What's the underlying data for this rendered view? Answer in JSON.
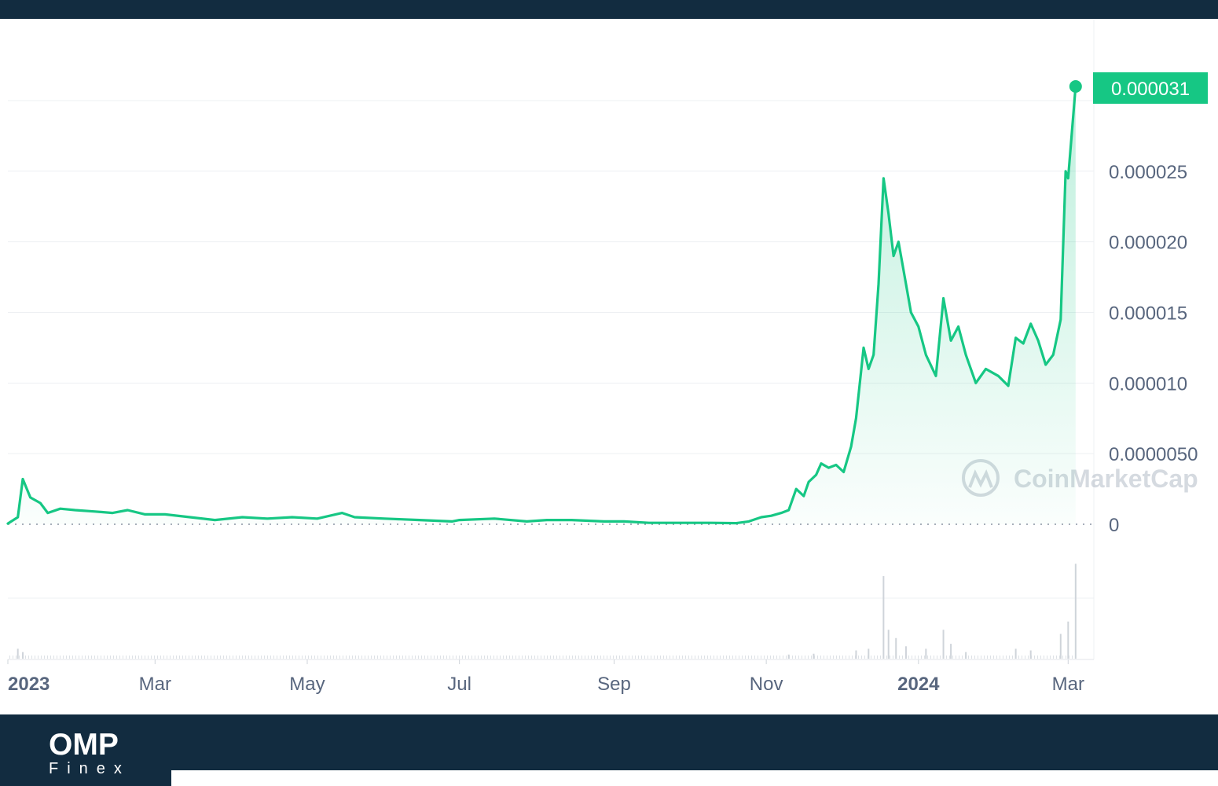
{
  "chart_data": {
    "type": "area",
    "title": "",
    "xlabel": "",
    "ylabel": "",
    "x_tick_labels": [
      "2023",
      "Mar",
      "May",
      "Jul",
      "Sep",
      "Nov",
      "2024",
      "Mar"
    ],
    "y_tick_labels": [
      "0",
      "0.0000050",
      "0.000010",
      "0.000015",
      "0.000020",
      "0.000025"
    ],
    "ylim": [
      0,
      3.1e-05
    ],
    "xlim": [
      "2023-01-01",
      "2024-03-05"
    ],
    "grid": true,
    "current_price_label": "0.000031",
    "watermark": "CoinMarketCap",
    "line_color": "#16c784",
    "fill_color": "#16c784",
    "series": [
      {
        "values": [
          [
            "2023-01-01",
            5e-08
          ],
          [
            "2023-01-05",
            5e-07
          ],
          [
            "2023-01-07",
            3.2e-06
          ],
          [
            "2023-01-10",
            1.9e-06
          ],
          [
            "2023-01-14",
            1.5e-06
          ],
          [
            "2023-01-17",
            8e-07
          ],
          [
            "2023-01-22",
            1.1e-06
          ],
          [
            "2023-01-28",
            1e-06
          ],
          [
            "2023-02-05",
            9e-07
          ],
          [
            "2023-02-12",
            8e-07
          ],
          [
            "2023-02-18",
            1e-06
          ],
          [
            "2023-02-25",
            7e-07
          ],
          [
            "2023-03-05",
            7e-07
          ],
          [
            "2023-03-15",
            5e-07
          ],
          [
            "2023-03-25",
            3e-07
          ],
          [
            "2023-04-05",
            5e-07
          ],
          [
            "2023-04-15",
            4e-07
          ],
          [
            "2023-04-25",
            5e-07
          ],
          [
            "2023-05-05",
            4e-07
          ],
          [
            "2023-05-15",
            8e-07
          ],
          [
            "2023-05-20",
            5e-07
          ],
          [
            "2023-06-01",
            4e-07
          ],
          [
            "2023-06-15",
            3e-07
          ],
          [
            "2023-06-28",
            2e-07
          ],
          [
            "2023-07-01",
            3e-07
          ],
          [
            "2023-07-15",
            4e-07
          ],
          [
            "2023-07-28",
            2e-07
          ],
          [
            "2023-08-05",
            3e-07
          ],
          [
            "2023-08-15",
            3e-07
          ],
          [
            "2023-08-28",
            2e-07
          ],
          [
            "2023-09-05",
            2e-07
          ],
          [
            "2023-09-15",
            1e-07
          ],
          [
            "2023-09-28",
            1e-07
          ],
          [
            "2023-10-10",
            1e-07
          ],
          [
            "2023-10-20",
            8e-08
          ],
          [
            "2023-10-25",
            2e-07
          ],
          [
            "2023-10-30",
            5e-07
          ],
          [
            "2023-11-03",
            6e-07
          ],
          [
            "2023-11-07",
            8e-07
          ],
          [
            "2023-11-10",
            1e-06
          ],
          [
            "2023-11-13",
            2.5e-06
          ],
          [
            "2023-11-16",
            2e-06
          ],
          [
            "2023-11-18",
            3e-06
          ],
          [
            "2023-11-21",
            3.5e-06
          ],
          [
            "2023-11-23",
            4.3e-06
          ],
          [
            "2023-11-26",
            4e-06
          ],
          [
            "2023-11-29",
            4.2e-06
          ],
          [
            "2023-12-02",
            3.7e-06
          ],
          [
            "2023-12-05",
            5.5e-06
          ],
          [
            "2023-12-07",
            7.5e-06
          ],
          [
            "2023-12-10",
            1.25e-05
          ],
          [
            "2023-12-12",
            1.1e-05
          ],
          [
            "2023-12-14",
            1.2e-05
          ],
          [
            "2023-12-16",
            1.7e-05
          ],
          [
            "2023-12-18",
            2.45e-05
          ],
          [
            "2023-12-20",
            2.2e-05
          ],
          [
            "2023-12-22",
            1.9e-05
          ],
          [
            "2023-12-24",
            2e-05
          ],
          [
            "2023-12-26",
            1.8e-05
          ],
          [
            "2023-12-29",
            1.5e-05
          ],
          [
            "2024-01-01",
            1.4e-05
          ],
          [
            "2024-01-04",
            1.2e-05
          ],
          [
            "2024-01-08",
            1.05e-05
          ],
          [
            "2024-01-11",
            1.6e-05
          ],
          [
            "2024-01-14",
            1.3e-05
          ],
          [
            "2024-01-17",
            1.4e-05
          ],
          [
            "2024-01-20",
            1.2e-05
          ],
          [
            "2024-01-24",
            1e-05
          ],
          [
            "2024-01-28",
            1.1e-05
          ],
          [
            "2024-02-02",
            1.05e-05
          ],
          [
            "2024-02-06",
            9.8e-06
          ],
          [
            "2024-02-09",
            1.32e-05
          ],
          [
            "2024-02-12",
            1.28e-05
          ],
          [
            "2024-02-15",
            1.42e-05
          ],
          [
            "2024-02-18",
            1.3e-05
          ],
          [
            "2024-02-21",
            1.13e-05
          ],
          [
            "2024-02-24",
            1.2e-05
          ],
          [
            "2024-02-27",
            1.45e-05
          ],
          [
            "2024-02-29",
            2.5e-05
          ],
          [
            "2024-03-01",
            2.45e-05
          ],
          [
            "2024-03-04",
            3.1e-05
          ]
        ]
      }
    ],
    "volume": {
      "values": [
        [
          "2023-01-05",
          0.12
        ],
        [
          "2023-01-07",
          0.08
        ],
        [
          "2023-11-10",
          0.05
        ],
        [
          "2023-11-20",
          0.06
        ],
        [
          "2023-12-07",
          0.1
        ],
        [
          "2023-12-12",
          0.12
        ],
        [
          "2023-12-18",
          1.0
        ],
        [
          "2023-12-20",
          0.35
        ],
        [
          "2023-12-23",
          0.25
        ],
        [
          "2023-12-27",
          0.15
        ],
        [
          "2024-01-04",
          0.12
        ],
        [
          "2024-01-11",
          0.35
        ],
        [
          "2024-01-14",
          0.18
        ],
        [
          "2024-01-20",
          0.08
        ],
        [
          "2024-02-09",
          0.12
        ],
        [
          "2024-02-15",
          0.1
        ],
        [
          "2024-02-27",
          0.3
        ],
        [
          "2024-03-01",
          0.45
        ],
        [
          "2024-03-04",
          1.15
        ]
      ]
    }
  },
  "brand": {
    "name": "OMP",
    "sub": "Finex"
  }
}
